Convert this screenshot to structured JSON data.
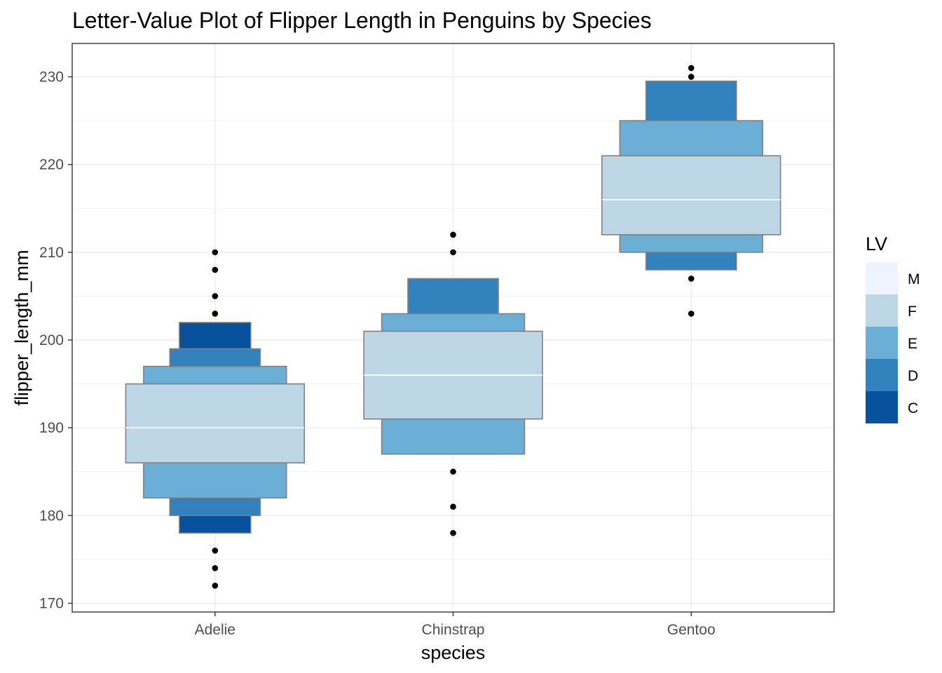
{
  "chart_data": {
    "type": "letter-value",
    "title": "Letter-Value Plot of Flipper Length in Penguins by Species",
    "xlabel": "species",
    "ylabel": "flipper_length_mm",
    "ylim": [
      169,
      233.8
    ],
    "yticks": [
      170,
      180,
      190,
      200,
      210,
      220,
      230
    ],
    "ytick_labels": [
      "170",
      "180",
      "190",
      "200",
      "210",
      "220",
      "230"
    ],
    "categories": [
      "Adelie",
      "Chinstrap",
      "Gentoo"
    ],
    "grid": true,
    "legend": {
      "title": "LV",
      "position": "right",
      "items": [
        {
          "label": "M",
          "color": "#eff3ff"
        },
        {
          "label": "F",
          "color": "#bdd7e7"
        },
        {
          "label": "E",
          "color": "#6baed6"
        },
        {
          "label": "D",
          "color": "#3182bd"
        },
        {
          "label": "C",
          "color": "#08519c"
        }
      ]
    },
    "series": [
      {
        "category": "Adelie",
        "median": 190,
        "boxes": [
          {
            "level": "F",
            "lower": 186,
            "upper": 195
          },
          {
            "level": "E",
            "lower": 182,
            "upper": 197
          },
          {
            "level": "D",
            "lower": 180,
            "upper": 199
          },
          {
            "level": "C",
            "lower": 178,
            "upper": 202
          }
        ],
        "outliers": [
          172,
          174,
          176,
          203,
          205,
          208,
          210
        ]
      },
      {
        "category": "Chinstrap",
        "median": 196,
        "boxes": [
          {
            "level": "F",
            "lower": 191,
            "upper": 201
          },
          {
            "level": "E",
            "lower": 187,
            "upper": 203
          },
          {
            "level": "D",
            "lower": 187,
            "upper": 207
          }
        ],
        "outliers": [
          178,
          181,
          185,
          210,
          212
        ]
      },
      {
        "category": "Gentoo",
        "median": 216,
        "boxes": [
          {
            "level": "F",
            "lower": 212,
            "upper": 221
          },
          {
            "level": "E",
            "lower": 210,
            "upper": 225
          },
          {
            "level": "D",
            "lower": 208,
            "upper": 229.5
          }
        ],
        "outliers": [
          203,
          207,
          230,
          231
        ]
      }
    ]
  }
}
